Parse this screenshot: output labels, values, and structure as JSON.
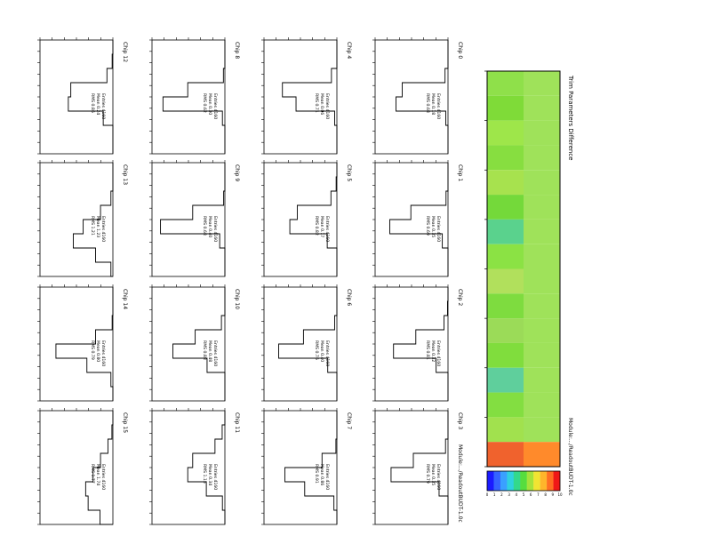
{
  "page": {
    "title": "Trim Parameters Difference",
    "module": "Module:.../ReadoutBUDT-1.0c",
    "footer": "Module:.../ReadoutBUDT-1.0c"
  },
  "colors": {
    "map_base": "#7ddd3a",
    "map_accent": "#9ee64a",
    "map_hot": "#f35a1a",
    "histogram_line": "#000000"
  },
  "chart_data": [
    {
      "type": "heatmap",
      "title": "Trim Parameters Difference",
      "colorbar_ticks": [
        "0",
        "1",
        "2",
        "3",
        "4",
        "5",
        "6",
        "7",
        "8",
        "9",
        "10"
      ],
      "notes": "Rotated 90° page; 16 chip regions along the long axis, one hot region (Chip 3)."
    },
    {
      "type": "bar",
      "panels": [
        {
          "name": "Chip 0",
          "entries": "Entries 4160",
          "mean": "Mean 0.18",
          "rms": "RMS 0.68",
          "counts": [
            0,
            0,
            120,
            1850,
            2100,
            90,
            0,
            0
          ]
        },
        {
          "name": "Chip 1",
          "entries": "Entries 4160",
          "mean": "Mean 0.35",
          "rms": "RMS 0.69",
          "counts": [
            0,
            0,
            80,
            1500,
            2350,
            230,
            0,
            0
          ]
        },
        {
          "name": "Chip 2",
          "entries": "Entries 4160",
          "mean": "Mean 0.32",
          "rms": "RMS 0.81",
          "counts": [
            0,
            20,
            160,
            1300,
            2200,
            480,
            0,
            0
          ]
        },
        {
          "name": "Chip 3",
          "entries": "Entries 4160",
          "mean": "Mean 0.35",
          "rms": "RMS 0.79",
          "counts": [
            0,
            0,
            100,
            1400,
            2300,
            360,
            0,
            0
          ]
        },
        {
          "name": "Chip 4",
          "entries": "Entries 4160",
          "mean": "Mean 0.06",
          "rms": "RMS 0.71",
          "counts": [
            0,
            0,
            220,
            2200,
            1650,
            90,
            0,
            0
          ]
        },
        {
          "name": "Chip 5",
          "entries": "Entries 4160",
          "mean": "Mean 0.17",
          "rms": "RMS 0.82",
          "counts": [
            0,
            30,
            240,
            1600,
            1900,
            390,
            0,
            0
          ]
        },
        {
          "name": "Chip 6",
          "entries": "Entries 4160",
          "mean": "Mean 0.40",
          "rms": "RMS 0.76",
          "counts": [
            0,
            0,
            90,
            1350,
            2350,
            370,
            0,
            0
          ]
        },
        {
          "name": "Chip 7",
          "entries": "Entries 4160",
          "mean": "Mean 0.86",
          "rms": "RMS 0.91",
          "counts": [
            0,
            0,
            40,
            600,
            2100,
            1300,
            120,
            0
          ]
        },
        {
          "name": "Chip 8",
          "entries": "Entries 4160",
          "mean": "Mean 0.30",
          "rms": "RMS 0.62",
          "counts": [
            0,
            0,
            60,
            1500,
            2500,
            100,
            0,
            0
          ]
        },
        {
          "name": "Chip 9",
          "entries": "Entries 4160",
          "mean": "Mean 0.40",
          "rms": "RMS 0.68",
          "counts": [
            0,
            0,
            50,
            1300,
            2600,
            210,
            0,
            0
          ]
        },
        {
          "name": "Chip 10",
          "entries": "Entries 4160",
          "mean": "Mean 0.48",
          "rms": "RMS 0.88",
          "counts": [
            0,
            0,
            140,
            1200,
            2100,
            720,
            0,
            0
          ]
        },
        {
          "name": "Chip 11",
          "entries": "Entries 4160",
          "mean": "Mean 0.34",
          "rms": "RMS 1.15",
          "counts": [
            0,
            110,
            400,
            1300,
            1500,
            750,
            100,
            0
          ]
        },
        {
          "name": "Chip 12",
          "entries": "Entries 4160",
          "mean": "Mean 0.24",
          "rms": "RMS 0.86",
          "counts": [
            0,
            30,
            240,
            1700,
            1800,
            390,
            0,
            0
          ]
        },
        {
          "name": "Chip 13",
          "entries": "Entries 4160",
          "mean": "Mean 1.23",
          "rms": "RMS 1.21",
          "counts": [
            0,
            0,
            80,
            500,
            1200,
            1600,
            700,
            80
          ]
        },
        {
          "name": "Chip 14",
          "entries": "Entries 4160",
          "mean": "Mean 0.80",
          "rms": "RMS 0.79",
          "counts": [
            0,
            0,
            30,
            700,
            2300,
            1050,
            80,
            0
          ]
        },
        {
          "name": "Chip 15",
          "entries": "Entries 4160",
          "mean": "Mean 1.74",
          "rms": "RMS 1.77",
          "counts": [
            0,
            40,
            200,
            500,
            800,
            1100,
            1000,
            520
          ]
        }
      ]
    }
  ]
}
